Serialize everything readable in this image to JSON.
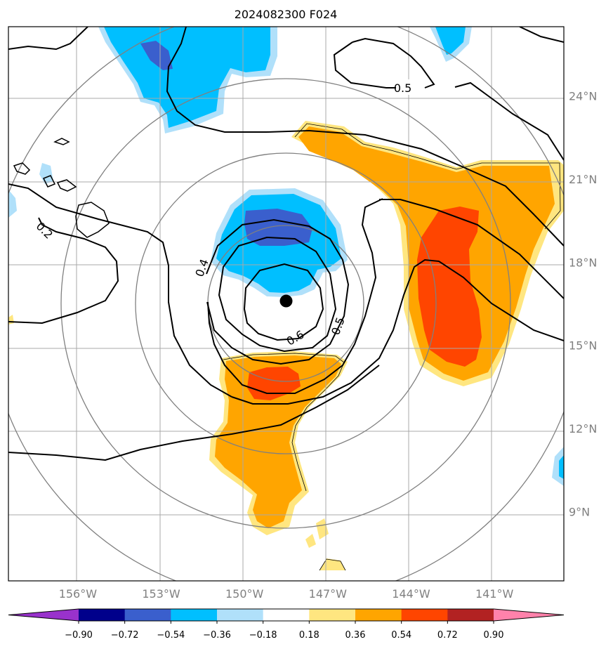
{
  "chart_data": {
    "type": "contour_map",
    "title": "2024082300 F024",
    "lon_ticks": [
      {
        "value": -156,
        "label": "156°W"
      },
      {
        "value": -153,
        "label": "153°W"
      },
      {
        "value": -150,
        "label": "150°W"
      },
      {
        "value": -147,
        "label": "147°W"
      },
      {
        "value": -144,
        "label": "144°W"
      },
      {
        "value": -141,
        "label": "141°W"
      }
    ],
    "lat_ticks": [
      {
        "value": 9,
        "label": "9°N"
      },
      {
        "value": 12,
        "label": "12°N"
      },
      {
        "value": 15,
        "label": "15°N"
      },
      {
        "value": 18,
        "label": "18°N"
      },
      {
        "value": 21,
        "label": "21°N"
      },
      {
        "value": 24,
        "label": "24°N"
      }
    ],
    "lon_range": [
      -158.5,
      -138.5
    ],
    "lat_range": [
      6.5,
      26.5
    ],
    "storm_center": {
      "lon": -148.5,
      "lat": 16.6
    },
    "contour_labels": [
      {
        "text": "0.5",
        "lon": -144.3,
        "lat": 24.3
      },
      {
        "text": "0.2",
        "lon": -157.3,
        "lat": 19.2
      },
      {
        "text": "0.4",
        "lon": -151.4,
        "lat": 17.9
      },
      {
        "text": "0.5",
        "lon": -146.5,
        "lat": 15.8
      },
      {
        "text": "0.6",
        "lon": -148.1,
        "lat": 15.3
      }
    ],
    "colorbar": {
      "levels": [
        -0.9,
        -0.72,
        -0.54,
        -0.36,
        -0.18,
        0.18,
        0.36,
        0.54,
        0.72,
        0.9
      ],
      "tick_labels": [
        "−0.90",
        "−0.72",
        "−0.54",
        "−0.36",
        "−0.18",
        "0.18",
        "0.36",
        "0.54",
        "0.72",
        "0.90"
      ],
      "colors": [
        "#9932cc",
        "#00008b",
        "#3a5fcd",
        "#00bfff",
        "#b0e0fa",
        "#ffffff",
        "#ffe680",
        "#ffa500",
        "#ff4500",
        "#b22222",
        "#ff82ab"
      ]
    }
  }
}
